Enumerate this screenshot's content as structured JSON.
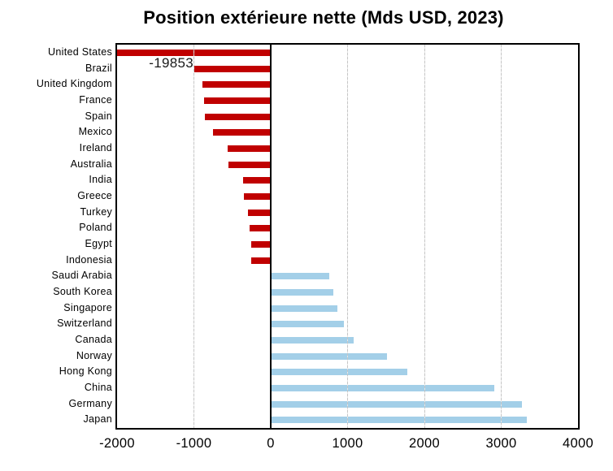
{
  "title": "Position extérieure nette (Mds USD, 2023)",
  "annotation": {
    "text": "-19853",
    "refers_to": "United States",
    "note": "bar clipped at axis minimum -2000"
  },
  "colors": {
    "negative_bar": "#c00000",
    "positive_bar": "#a3cfe8",
    "axis": "#000000",
    "gridline": "#c6c6c6",
    "background": "#ffffff"
  },
  "chart_data": {
    "type": "bar",
    "orientation": "horizontal",
    "title": "Position extérieure nette (Mds USD, 2023)",
    "xlabel": "",
    "ylabel": "",
    "xlim": [
      -2000,
      4000
    ],
    "xticks": [
      -2000,
      -1000,
      0,
      1000,
      2000,
      3000,
      4000
    ],
    "gridlines_at": [
      -1000,
      1000,
      2000,
      3000
    ],
    "grid": true,
    "legend": false,
    "categories": [
      "United States",
      "Brazil",
      "United Kingdom",
      "France",
      "Spain",
      "Mexico",
      "Ireland",
      "Australia",
      "India",
      "Greece",
      "Turkey",
      "Poland",
      "Egypt",
      "Indonesia",
      "Saudi Arabia",
      "South Korea",
      "Singapore",
      "Switzerland",
      "Canada",
      "Norway",
      "Hong Kong",
      "China",
      "Germany",
      "Japan"
    ],
    "values": [
      -19853,
      -990,
      -890,
      -865,
      -855,
      -750,
      -560,
      -550,
      -360,
      -345,
      -300,
      -270,
      -255,
      -250,
      760,
      815,
      865,
      950,
      1080,
      1510,
      1780,
      2910,
      3270,
      3330
    ]
  }
}
